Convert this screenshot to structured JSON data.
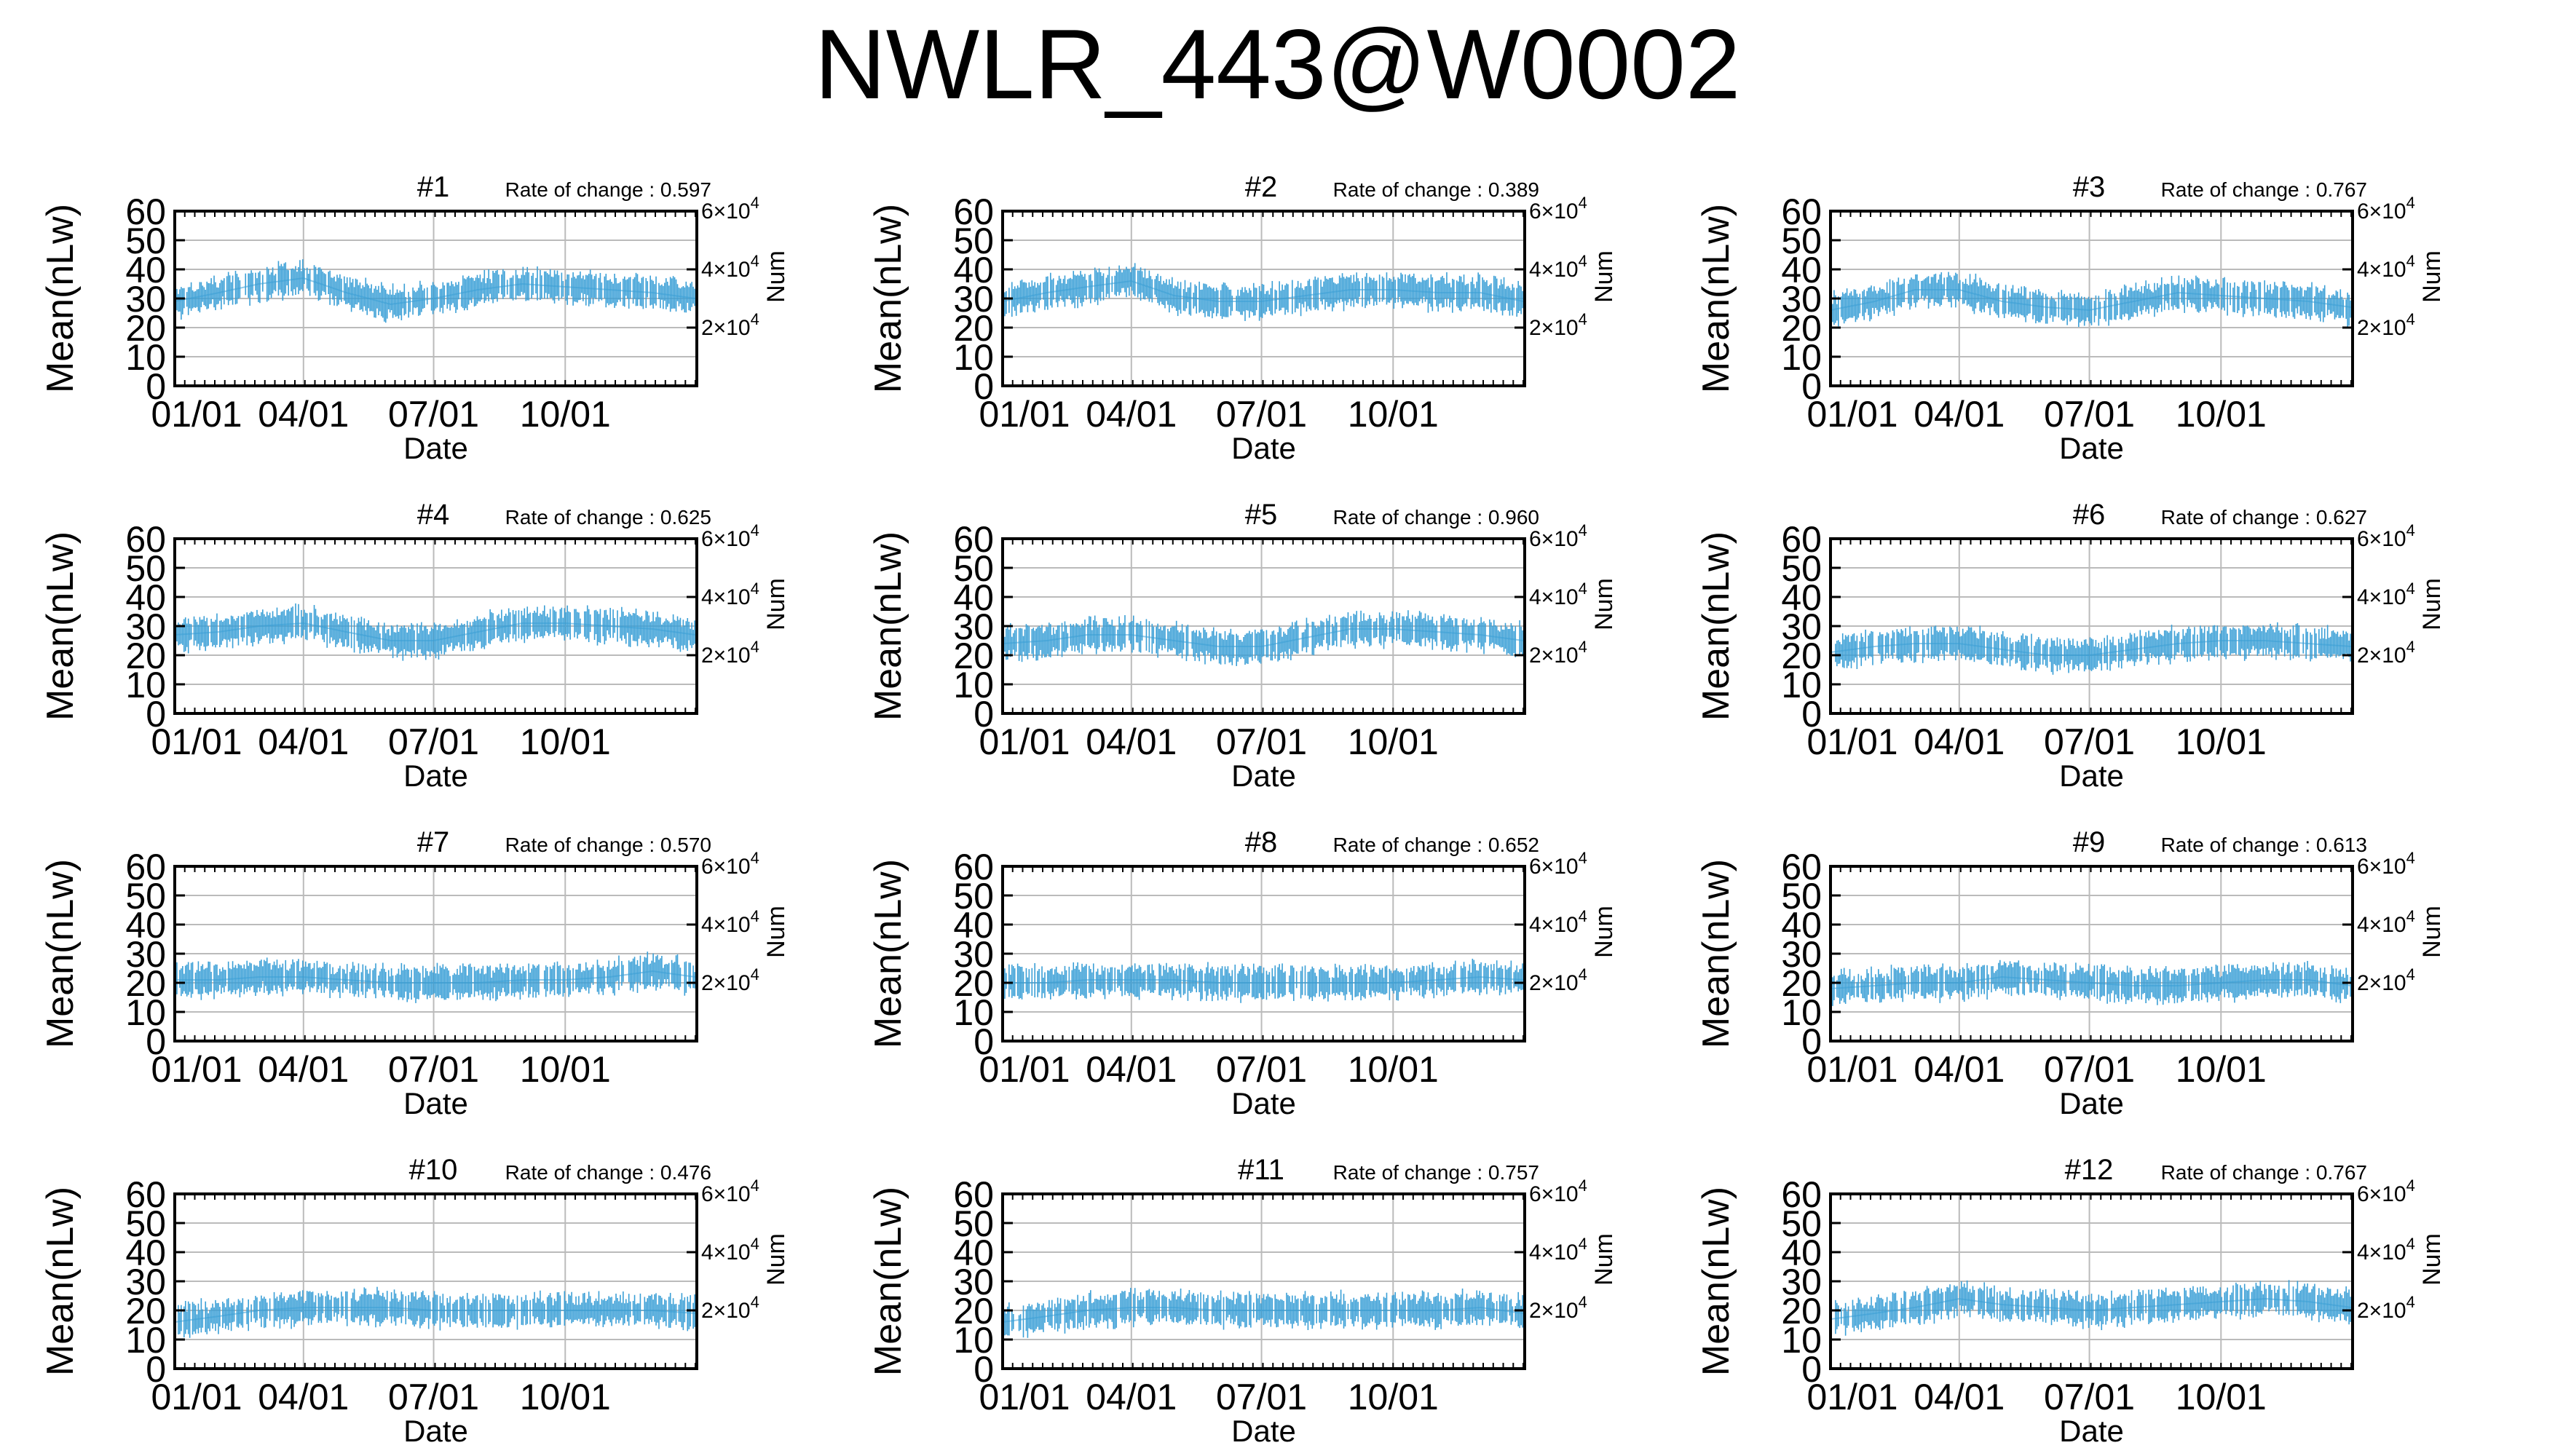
{
  "title": "NWLR_443@W0002",
  "common": {
    "ylabel": "Mean(nLw)",
    "xlabel": "Date",
    "y2label": "Num",
    "rate_prefix": "Rate of change : ",
    "yticks": [
      "0",
      "10",
      "20",
      "30",
      "40",
      "50",
      "60"
    ],
    "xticks": [
      "01/01",
      "04/01",
      "07/01",
      "10/01"
    ],
    "xtick_days": [
      0,
      90,
      181,
      273
    ],
    "days_in_year": 365,
    "ylim": [
      0,
      60
    ],
    "y2ticks": [
      {
        "value": 20000,
        "mant": "2",
        "exp": "4"
      },
      {
        "value": 40000,
        "mant": "4",
        "exp": "4"
      },
      {
        "value": 60000,
        "mant": "6",
        "exp": "4"
      }
    ],
    "y2lim": [
      0,
      60000
    ],
    "series_color": "#3a9fd6",
    "grid_color": "#bbbbbb"
  },
  "chart_data": [
    {
      "type": "line",
      "title": "#1",
      "rate_of_change": "0.597",
      "xlabel": "Date",
      "ylabel": "Mean(nLw)",
      "grid": true,
      "x": [
        "01/01",
        "02/01",
        "03/01",
        "04/01",
        "05/01",
        "06/01",
        "07/01",
        "08/01",
        "09/01",
        "10/01",
        "11/01",
        "12/01",
        "12/31"
      ],
      "y": [
        29,
        32,
        35,
        37,
        32,
        28,
        30,
        33,
        35,
        34,
        33,
        32,
        30
      ]
    },
    {
      "type": "line",
      "title": "#2",
      "rate_of_change": "0.389",
      "xlabel": "Date",
      "ylabel": "Mean(nLw)",
      "grid": true,
      "x": [
        "01/01",
        "02/01",
        "03/01",
        "04/01",
        "05/01",
        "06/01",
        "07/01",
        "08/01",
        "09/01",
        "10/01",
        "11/01",
        "12/01",
        "12/31"
      ],
      "y": [
        29,
        32,
        34,
        36,
        31,
        29,
        29,
        31,
        33,
        33,
        32,
        32,
        29
      ]
    },
    {
      "type": "line",
      "title": "#3",
      "rate_of_change": "0.767",
      "xlabel": "Date",
      "ylabel": "Mean(nLw)",
      "grid": true,
      "x": [
        "01/01",
        "02/01",
        "03/01",
        "04/01",
        "05/01",
        "06/01",
        "07/01",
        "08/01",
        "09/01",
        "10/01",
        "11/01",
        "12/01",
        "12/31"
      ],
      "y": [
        26,
        29,
        33,
        33,
        29,
        27,
        26,
        29,
        32,
        31,
        30,
        29,
        27
      ]
    },
    {
      "type": "line",
      "title": "#4",
      "rate_of_change": "0.625",
      "xlabel": "Date",
      "ylabel": "Mean(nLw)",
      "grid": true,
      "x": [
        "01/01",
        "02/01",
        "03/01",
        "04/01",
        "05/01",
        "06/01",
        "07/01",
        "08/01",
        "09/01",
        "10/01",
        "11/01",
        "12/01",
        "12/31"
      ],
      "y": [
        27,
        28,
        30,
        31,
        28,
        25,
        25,
        28,
        31,
        31,
        30,
        29,
        27
      ]
    },
    {
      "type": "line",
      "title": "#5",
      "rate_of_change": "0.960",
      "xlabel": "Date",
      "ylabel": "Mean(nLw)",
      "grid": true,
      "x": [
        "01/01",
        "02/01",
        "03/01",
        "04/01",
        "05/01",
        "06/01",
        "07/01",
        "08/01",
        "09/01",
        "10/01",
        "11/01",
        "12/01",
        "12/31"
      ],
      "y": [
        24,
        25,
        27,
        27,
        25,
        23,
        23,
        26,
        29,
        29,
        28,
        27,
        25
      ]
    },
    {
      "type": "line",
      "title": "#6",
      "rate_of_change": "0.627",
      "xlabel": "Date",
      "ylabel": "Mean(nLw)",
      "grid": true,
      "x": [
        "01/01",
        "02/01",
        "03/01",
        "04/01",
        "05/01",
        "06/01",
        "07/01",
        "08/01",
        "09/01",
        "10/01",
        "11/01",
        "12/01",
        "12/31"
      ],
      "y": [
        21,
        23,
        24,
        24,
        22,
        20,
        20,
        22,
        24,
        25,
        25,
        24,
        23
      ]
    },
    {
      "type": "line",
      "title": "#7",
      "rate_of_change": "0.570",
      "xlabel": "Date",
      "ylabel": "Mean(nLw)",
      "grid": true,
      "x": [
        "01/01",
        "02/01",
        "03/01",
        "04/01",
        "05/01",
        "06/01",
        "07/01",
        "08/01",
        "09/01",
        "10/01",
        "11/01",
        "12/01",
        "12/31"
      ],
      "y": [
        21,
        21,
        22,
        22,
        21,
        20,
        20,
        20,
        21,
        21,
        22,
        24,
        22
      ]
    },
    {
      "type": "line",
      "title": "#8",
      "rate_of_change": "0.652",
      "xlabel": "Date",
      "ylabel": "Mean(nLw)",
      "grid": true,
      "x": [
        "01/01",
        "02/01",
        "03/01",
        "04/01",
        "05/01",
        "06/01",
        "07/01",
        "08/01",
        "09/01",
        "10/01",
        "11/01",
        "12/01",
        "12/31"
      ],
      "y": [
        20,
        20,
        21,
        21,
        21,
        20,
        20,
        20,
        20,
        20,
        21,
        22,
        21
      ]
    },
    {
      "type": "line",
      "title": "#9",
      "rate_of_change": "0.613",
      "xlabel": "Date",
      "ylabel": "Mean(nLw)",
      "grid": true,
      "x": [
        "01/01",
        "02/01",
        "03/01",
        "04/01",
        "05/01",
        "06/01",
        "07/01",
        "08/01",
        "09/01",
        "10/01",
        "11/01",
        "12/01",
        "12/31"
      ],
      "y": [
        18,
        19,
        20,
        20,
        22,
        21,
        20,
        19,
        19,
        20,
        21,
        21,
        19
      ]
    },
    {
      "type": "line",
      "title": "#10",
      "rate_of_change": "0.476",
      "xlabel": "Date",
      "ylabel": "Mean(nLw)",
      "grid": true,
      "x": [
        "01/01",
        "02/01",
        "03/01",
        "04/01",
        "05/01",
        "06/01",
        "07/01",
        "08/01",
        "09/01",
        "10/01",
        "11/01",
        "12/01",
        "12/31"
      ],
      "y": [
        16,
        18,
        20,
        21,
        21,
        21,
        20,
        20,
        20,
        20,
        20,
        20,
        19
      ]
    },
    {
      "type": "line",
      "title": "#11",
      "rate_of_change": "0.757",
      "xlabel": "Date",
      "ylabel": "Mean(nLw)",
      "grid": true,
      "x": [
        "01/01",
        "02/01",
        "03/01",
        "04/01",
        "05/01",
        "06/01",
        "07/01",
        "08/01",
        "09/01",
        "10/01",
        "11/01",
        "12/01",
        "12/31"
      ],
      "y": [
        16,
        18,
        20,
        21,
        21,
        20,
        20,
        20,
        20,
        20,
        20,
        21,
        19
      ]
    },
    {
      "type": "line",
      "title": "#12",
      "rate_of_change": "0.767",
      "xlabel": "Date",
      "ylabel": "Mean(nLw)",
      "grid": true,
      "x": [
        "01/01",
        "02/01",
        "03/01",
        "04/01",
        "05/01",
        "06/01",
        "07/01",
        "08/01",
        "09/01",
        "10/01",
        "11/01",
        "12/01",
        "12/31"
      ],
      "y": [
        17,
        19,
        21,
        24,
        22,
        21,
        20,
        21,
        22,
        23,
        24,
        23,
        21
      ]
    }
  ]
}
